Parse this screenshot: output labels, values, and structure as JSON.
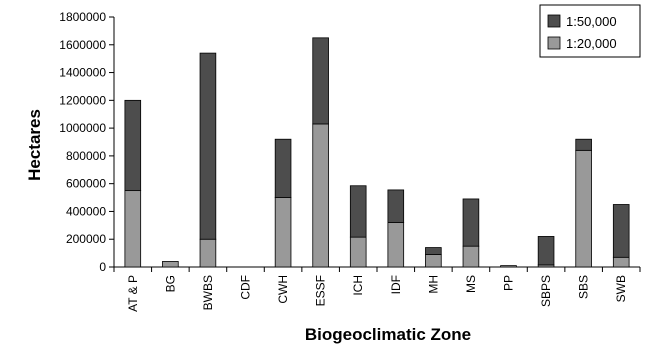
{
  "chart_data": {
    "type": "bar",
    "stacked": true,
    "title": "",
    "xlabel": "Biogeoclimatic Zone",
    "ylabel": "Hectares",
    "ylim": [
      0,
      1800000
    ],
    "yticks": [
      0,
      200000,
      400000,
      600000,
      800000,
      1000000,
      1200000,
      1400000,
      1600000,
      1800000
    ],
    "grid": false,
    "legend_position": "top-right",
    "categories": [
      "AT & P",
      "BG",
      "BWBS",
      "CDF",
      "CWH",
      "ESSF",
      "ICH",
      "IDF",
      "MH",
      "MS",
      "PP",
      "SBPS",
      "SBS",
      "SWB"
    ],
    "series": [
      {
        "name": "1:20,000",
        "color": "#999999",
        "values": [
          550000,
          40000,
          200000,
          0,
          500000,
          1030000,
          215000,
          320000,
          90000,
          150000,
          10000,
          15000,
          840000,
          70000
        ]
      },
      {
        "name": "1:50,000",
        "color": "#4d4d4d",
        "values": [
          650000,
          0,
          1340000,
          0,
          420000,
          620000,
          370000,
          235000,
          50000,
          340000,
          0,
          205000,
          80000,
          380000
        ]
      }
    ],
    "legend": [
      "1:50,000",
      "1:20,000"
    ]
  }
}
